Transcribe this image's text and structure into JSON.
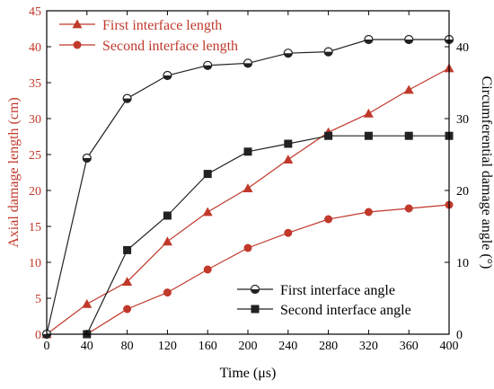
{
  "chart_data": {
    "type": "line",
    "title": "",
    "x": [
      0,
      40,
      80,
      120,
      160,
      200,
      240,
      280,
      320,
      360,
      400
    ],
    "xlabel": "Time (μs)",
    "xlim": [
      0,
      400
    ],
    "xticks": [
      0,
      40,
      80,
      120,
      160,
      200,
      240,
      280,
      320,
      360,
      400
    ],
    "ylabel_left": "Axial damage length (cm)",
    "ylim_left": [
      0,
      45
    ],
    "yticks_left": [
      0,
      5,
      10,
      15,
      20,
      25,
      30,
      35,
      40,
      45
    ],
    "ylabel_right": "Circumferential damage angle (°)",
    "ylim_right": [
      0,
      45
    ],
    "yticks_right": [
      0,
      10,
      20,
      30,
      40
    ],
    "grid": false,
    "series": [
      {
        "name": "First interface length",
        "axis": "left",
        "color": "#c0392b",
        "marker": "triangle",
        "x": [
          0,
          40,
          80,
          120,
          160,
          200,
          240,
          280,
          320,
          360,
          400
        ],
        "values": [
          0,
          4.2,
          7.3,
          12.9,
          17.0,
          20.3,
          24.3,
          28.1,
          30.7,
          34.0,
          37.0
        ]
      },
      {
        "name": "Second interface length",
        "axis": "left",
        "color": "#c0392b",
        "marker": "circle",
        "x": [
          40,
          80,
          120,
          160,
          200,
          240,
          280,
          320,
          360,
          400
        ],
        "values": [
          0,
          3.5,
          5.8,
          9.0,
          12.0,
          14.1,
          16.0,
          17.0,
          17.5,
          18.0
        ]
      },
      {
        "name": "First interface angle",
        "axis": "right",
        "color": "#222222",
        "marker": "half-circle",
        "x": [
          0,
          40,
          80,
          120,
          160,
          200,
          240,
          280,
          320,
          360,
          400
        ],
        "values": [
          0,
          24.5,
          32.8,
          36.0,
          37.4,
          37.7,
          39.1,
          39.3,
          41.0,
          41.0,
          41.0
        ]
      },
      {
        "name": "Second interface angle",
        "axis": "right",
        "color": "#222222",
        "marker": "square",
        "x": [
          40,
          80,
          120,
          160,
          200,
          240,
          280,
          320,
          360,
          400
        ],
        "values": [
          0,
          11.7,
          16.5,
          22.3,
          25.4,
          26.5,
          27.6,
          27.6,
          27.6,
          27.6
        ]
      }
    ],
    "legend_top": {
      "placement": "top-left",
      "entries": [
        "First interface length",
        "Second interface length"
      ]
    },
    "legend_bottom": {
      "placement": "bottom-right",
      "entries": [
        "First interface angle",
        "Second interface angle"
      ]
    }
  }
}
